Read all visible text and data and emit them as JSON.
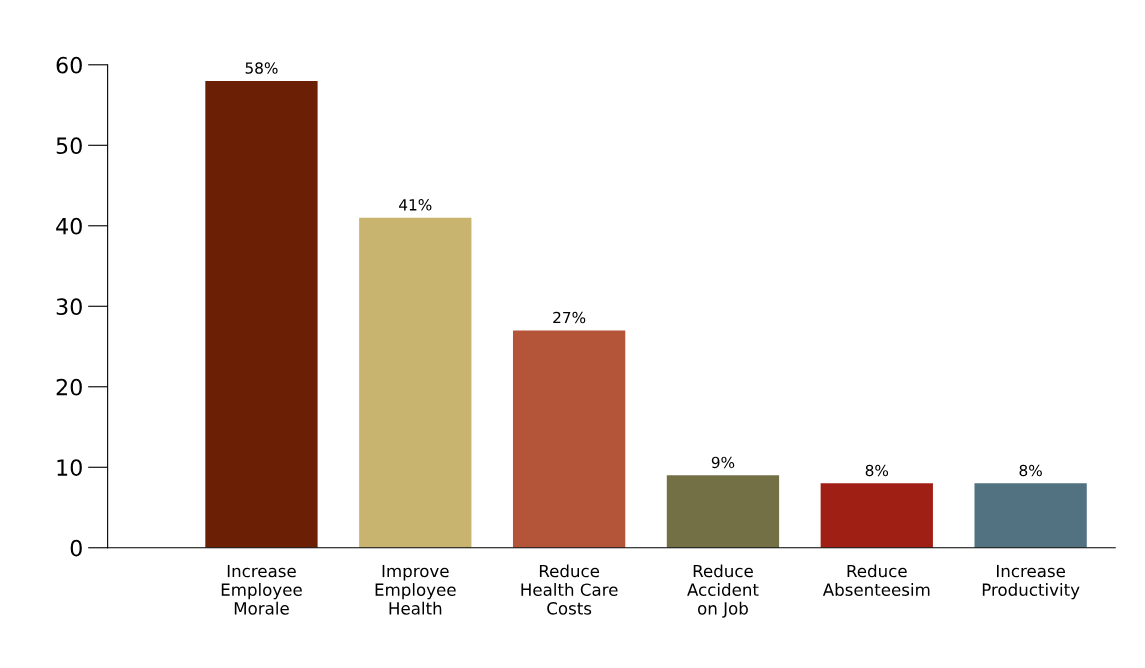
{
  "chart_data": {
    "type": "bar",
    "categories": [
      "Increase\nEmployee\nMorale",
      "Improve\nEmployee\nHealth",
      "Reduce\nHealth Care\nCosts",
      "Reduce\nAccident\non Job",
      "Reduce\nAbsenteesim",
      "Increase\nProductivity"
    ],
    "values": [
      58,
      41,
      27,
      9,
      8,
      8
    ],
    "value_labels": [
      "58%",
      "41%",
      "27%",
      "9%",
      "8%",
      "8%"
    ],
    "colors": [
      "#6b2006",
      "#c8b46e",
      "#b4553a",
      "#737046",
      "#a01f14",
      "#527282"
    ],
    "ylim": [
      0,
      60
    ],
    "yticks": [
      0,
      10,
      20,
      30,
      40,
      50,
      60
    ],
    "grid": false,
    "legend": false
  }
}
